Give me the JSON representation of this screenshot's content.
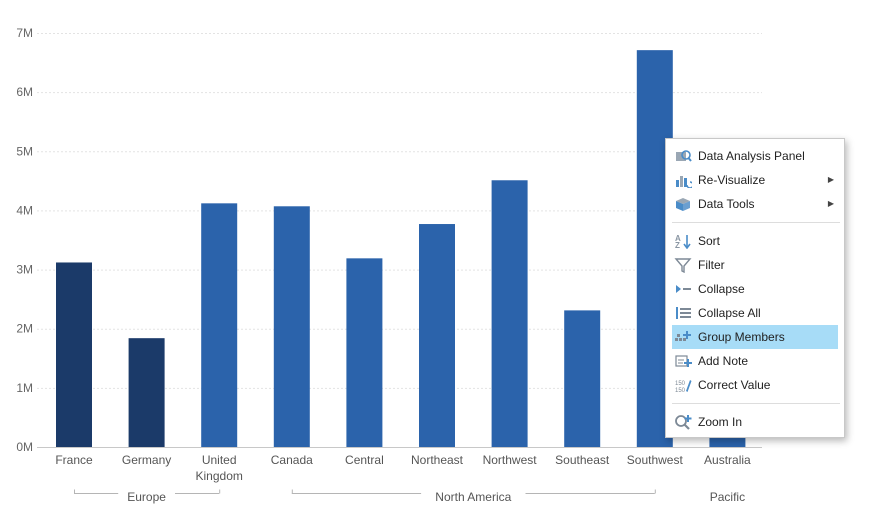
{
  "chart_data": {
    "type": "bar",
    "categories": [
      "France",
      "Germany",
      "United Kingdom",
      "Canada",
      "Central",
      "Northeast",
      "Northwest",
      "Southeast",
      "Southwest",
      "Australia"
    ],
    "category_lines": [
      [
        "France"
      ],
      [
        "Germany"
      ],
      [
        "United",
        "Kingdom"
      ],
      [
        "Canada"
      ],
      [
        "Central"
      ],
      [
        "Northeast"
      ],
      [
        "Northwest"
      ],
      [
        "Southeast"
      ],
      [
        "Southwest"
      ],
      [
        "Australia"
      ]
    ],
    "values": [
      3120000,
      1840000,
      4120000,
      4070000,
      3190000,
      3770000,
      4510000,
      2310000,
      6710000,
      300000
    ],
    "bar_colors": [
      "#1b3a69",
      "#1b3a69",
      "#2b63ab",
      "#2b63ab",
      "#2b63ab",
      "#2b63ab",
      "#2b63ab",
      "#2b63ab",
      "#2b63ab",
      "#2b63ab"
    ],
    "groups": [
      {
        "name": "Europe",
        "first": 0,
        "last": 2
      },
      {
        "name": "North America",
        "first": 3,
        "last": 8
      },
      {
        "name": "Pacific",
        "first": 9,
        "last": 9
      }
    ],
    "ylim": [
      0,
      7000000
    ],
    "yticks": [
      0,
      1000000,
      2000000,
      3000000,
      4000000,
      5000000,
      6000000,
      7000000
    ],
    "ytick_labels": [
      "0M",
      "1M",
      "2M",
      "3M",
      "4M",
      "5M",
      "6M",
      "7M"
    ],
    "grid": true,
    "title": "",
    "xlabel": "",
    "ylabel": ""
  },
  "context_menu": {
    "items": [
      {
        "label": "Data Analysis Panel",
        "icon": "data-analysis-icon",
        "submenu": false
      },
      {
        "label": "Re-Visualize",
        "icon": "revisualize-icon",
        "submenu": true
      },
      {
        "label": "Data Tools",
        "icon": "data-tools-icon",
        "submenu": true
      },
      {
        "separator": true
      },
      {
        "label": "Sort",
        "icon": "sort-icon",
        "submenu": false
      },
      {
        "label": "Filter",
        "icon": "filter-icon",
        "submenu": false
      },
      {
        "label": "Collapse",
        "icon": "collapse-icon",
        "submenu": false
      },
      {
        "label": "Collapse All",
        "icon": "collapse-all-icon",
        "submenu": false
      },
      {
        "label": "Group Members",
        "icon": "group-members-icon",
        "submenu": false,
        "highlighted": true
      },
      {
        "label": "Add Note",
        "icon": "add-note-icon",
        "submenu": false
      },
      {
        "label": "Correct Value",
        "icon": "correct-value-icon",
        "submenu": false
      },
      {
        "separator": true
      },
      {
        "label": "Zoom In",
        "icon": "zoom-in-icon",
        "submenu": false
      }
    ],
    "colors": {
      "highlight": "#a7dcf7",
      "icon": "#4a8cc8"
    }
  }
}
